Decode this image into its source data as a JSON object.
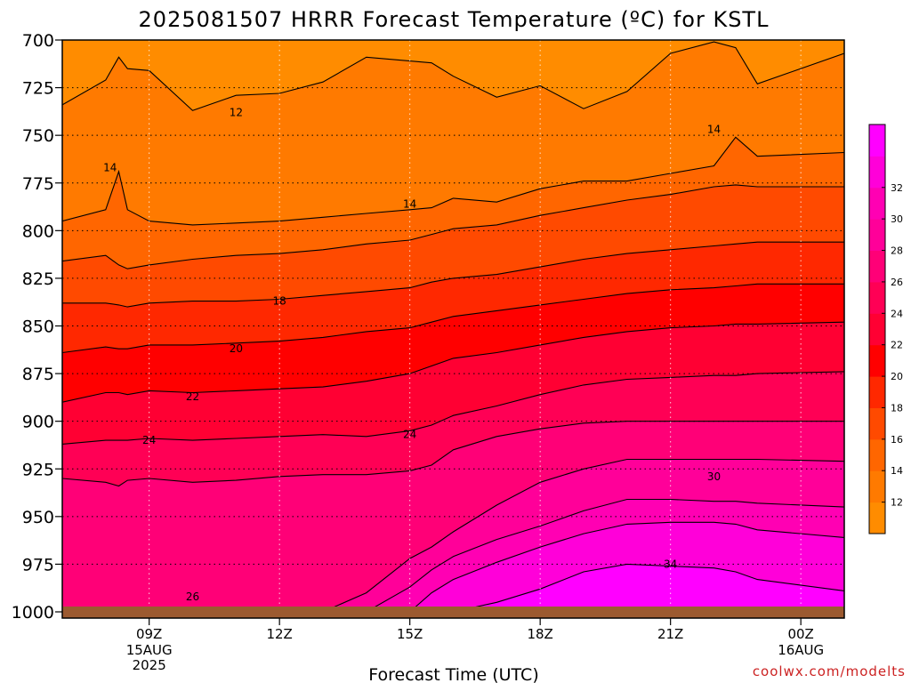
{
  "chart_data": {
    "type": "contour-filled time-height cross section",
    "title": "2025081507 HRRR Forecast Temperature (ºC) for KSTL",
    "xlabel": "Forecast Time (UTC)",
    "ylabel": "",
    "y_scale": "pressure (hPa), inverted, increasing downward",
    "ylim": [
      700,
      1000
    ],
    "y_ticks": [
      "700",
      "725",
      "750",
      "775",
      "800",
      "825",
      "850",
      "875",
      "900",
      "925",
      "950",
      "975",
      "1000"
    ],
    "xlim_hours": [
      7,
      25
    ],
    "x_ticks": [
      {
        "hour": 9,
        "label": "09Z",
        "sub": [
          "15AUG",
          "2025"
        ]
      },
      {
        "hour": 12,
        "label": "12Z",
        "sub": []
      },
      {
        "hour": 15,
        "label": "15Z",
        "sub": []
      },
      {
        "hour": 18,
        "label": "18Z",
        "sub": []
      },
      {
        "hour": 21,
        "label": "21Z",
        "sub": []
      },
      {
        "hour": 24,
        "label": "00Z",
        "sub": [
          "16AUG"
        ]
      }
    ],
    "grid": true,
    "legend": "right colorbar",
    "colorbar": {
      "levels": [
        10,
        12,
        14,
        16,
        18,
        20,
        22,
        24,
        26,
        28,
        30,
        32,
        34
      ],
      "tick_labels": [
        "12",
        "14",
        "16",
        "18",
        "20",
        "22",
        "24",
        "26",
        "28",
        "30",
        "32"
      ],
      "colors": [
        "#ff8c00",
        "#ff7a00",
        "#ff6600",
        "#ff4a00",
        "#ff2800",
        "#ff0000",
        "#ff0033",
        "#ff0055",
        "#ff0077",
        "#ff0099",
        "#ff00b3",
        "#ff00d9",
        "#ff00ff"
      ]
    },
    "isotherms": [
      {
        "value": 12,
        "pressure_hpa": [
          734,
          721,
          709,
          715,
          716,
          737,
          729,
          728,
          722,
          709,
          711,
          712,
          719,
          730,
          724,
          736,
          727,
          707,
          701,
          704,
          723,
          707
        ]
      },
      {
        "value": 14,
        "pressure_hpa": [
          795,
          789,
          769,
          789,
          795,
          797,
          796,
          795,
          793,
          791,
          789,
          788,
          783,
          785,
          778,
          774,
          774,
          770,
          766,
          751,
          761,
          759
        ]
      },
      {
        "value": 16,
        "pressure_hpa": [
          816,
          813,
          818,
          820,
          818,
          815,
          813,
          812,
          810,
          807,
          805,
          802,
          799,
          797,
          792,
          788,
          784,
          781,
          777,
          776,
          777,
          777
        ]
      },
      {
        "value": 18,
        "pressure_hpa": [
          838,
          838,
          839,
          840,
          838,
          837,
          837,
          836,
          834,
          832,
          830,
          827,
          825,
          823,
          819,
          815,
          812,
          810,
          808,
          807,
          806,
          806
        ]
      },
      {
        "value": 20,
        "pressure_hpa": [
          864,
          861,
          862,
          862,
          860,
          860,
          859,
          858,
          856,
          853,
          851,
          848,
          845,
          842,
          839,
          836,
          833,
          831,
          830,
          829,
          828,
          828
        ]
      },
      {
        "value": 22,
        "pressure_hpa": [
          890,
          885,
          885,
          886,
          884,
          885,
          884,
          883,
          882,
          879,
          875,
          871,
          867,
          864,
          860,
          856,
          853,
          851,
          850,
          849,
          849,
          848
        ]
      },
      {
        "value": 24,
        "pressure_hpa": [
          912,
          910,
          910,
          910,
          909,
          910,
          909,
          908,
          907,
          908,
          905,
          902,
          897,
          892,
          886,
          881,
          878,
          877,
          876,
          876,
          875,
          874
        ]
      },
      {
        "value": 26,
        "pressure_hpa": [
          930,
          932,
          934,
          931,
          930,
          932,
          931,
          929,
          928,
          928,
          926,
          923,
          915,
          908,
          904,
          901,
          900,
          900,
          900,
          900,
          900,
          900
        ]
      },
      {
        "value": 28,
        "pressure_hpa": [
          1000,
          1000,
          1000,
          1000,
          1000,
          1000,
          1000,
          1000,
          1000,
          990,
          972,
          966,
          958,
          944,
          932,
          925,
          920,
          920,
          920,
          920,
          920,
          921
        ]
      },
      {
        "value": 30,
        "pressure_hpa": [
          1000,
          1000,
          1000,
          1000,
          1000,
          1000,
          1000,
          1000,
          1000,
          1000,
          987,
          978,
          971,
          962,
          955,
          947,
          941,
          941,
          942,
          942,
          943,
          945
        ]
      },
      {
        "value": 32,
        "pressure_hpa": [
          1000,
          1000,
          1000,
          1000,
          1000,
          1000,
          1000,
          1000,
          1000,
          1000,
          1000,
          990,
          983,
          974,
          966,
          959,
          954,
          953,
          953,
          954,
          957,
          961
        ]
      },
      {
        "value": 34,
        "pressure_hpa": [
          1000,
          1000,
          1000,
          1000,
          1000,
          1000,
          1000,
          1000,
          1000,
          1000,
          1000,
          1000,
          1000,
          995,
          988,
          979,
          975,
          976,
          977,
          979,
          983,
          989
        ]
      }
    ],
    "isotherm_hours": [
      7,
      8,
      8.3,
      8.5,
      9,
      10,
      11,
      12,
      13,
      14,
      15,
      15.5,
      16,
      17,
      18,
      19,
      20,
      21,
      22,
      22.5,
      23,
      25
    ],
    "contour_labels": [
      {
        "text": "12",
        "hour": 11,
        "pressure": 738
      },
      {
        "text": "14",
        "hour": 8.1,
        "pressure": 767
      },
      {
        "text": "14",
        "hour": 15,
        "pressure": 786
      },
      {
        "text": "14",
        "hour": 22,
        "pressure": 747
      },
      {
        "text": "18",
        "hour": 12,
        "pressure": 837
      },
      {
        "text": "20",
        "hour": 11,
        "pressure": 862
      },
      {
        "text": "22",
        "hour": 10,
        "pressure": 887
      },
      {
        "text": "24",
        "hour": 9,
        "pressure": 910
      },
      {
        "text": "24",
        "hour": 15,
        "pressure": 907
      },
      {
        "text": "26",
        "hour": 10,
        "pressure": 992
      },
      {
        "text": "30",
        "hour": 22,
        "pressure": 929
      },
      {
        "text": "34",
        "hour": 21,
        "pressure": 975
      }
    ],
    "ground_color": "#9c5a30"
  },
  "credit": "coolwx.com/modelts"
}
